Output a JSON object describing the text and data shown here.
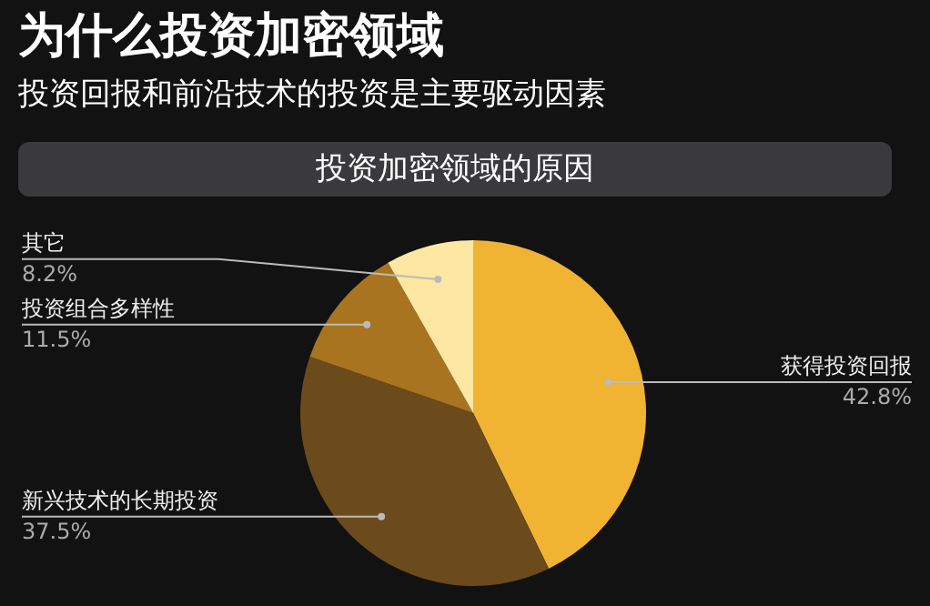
{
  "chart_data": {
    "type": "pie",
    "title": "为什么投资加密领域",
    "subtitle": "投资回报和前沿技术的投资是主要驱动因素",
    "annotations": [
      "投资加密领域的原因"
    ],
    "categories": [
      "获得投资回报",
      "新兴技术的长期投资",
      "投资组合多样性",
      "其它"
    ],
    "values": [
      42.8,
      37.5,
      11.5,
      8.2
    ],
    "value_labels": [
      "42.8%",
      "37.5%",
      "11.5%",
      "8.2%"
    ],
    "colors": [
      "#f0b332",
      "#6b4a1c",
      "#a9741f",
      "#fde7a2"
    ],
    "legend": false
  }
}
